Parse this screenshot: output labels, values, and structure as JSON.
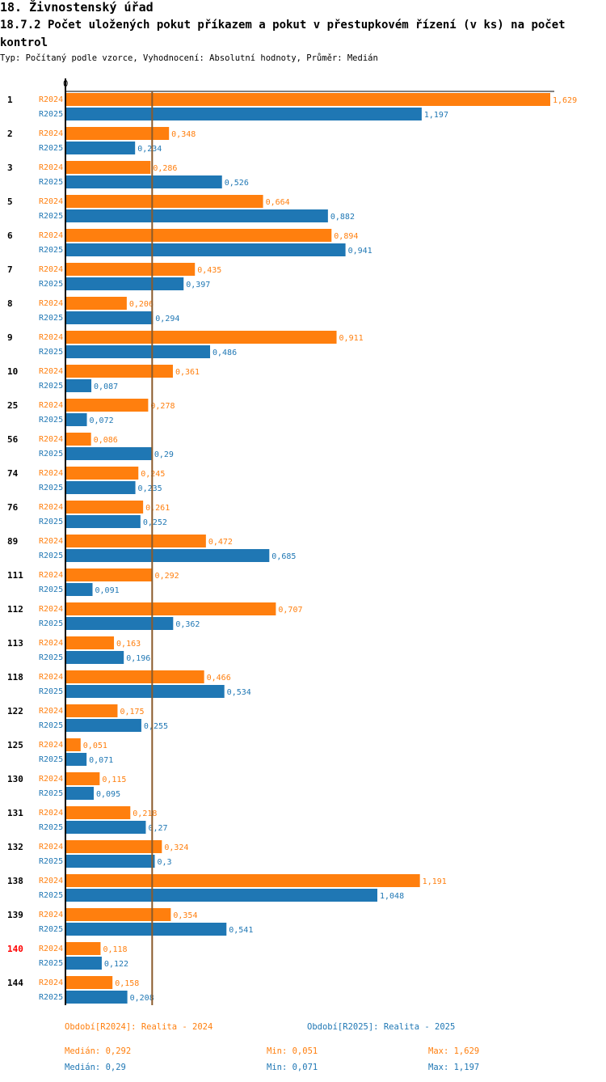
{
  "header": {
    "title": "18. Živnostenský úřad",
    "subtitle": "18.7.2 Počet uložených pokut příkazem a pokut v přestupkovém řízení (v ks) na počet kontrol",
    "type_line": "Typ: Počítaný podle vzorce, Vyhodnocení: Absolutní hodnoty, Průměr: Medián"
  },
  "colors": {
    "r2024": "#ff7f0e",
    "r2025": "#1f77b4",
    "highlight": "#ff0000",
    "median_line": "#8b5a2b"
  },
  "chart_data": {
    "type": "bar",
    "orientation": "horizontal",
    "axis_zero_label": "0",
    "xlim": [
      0,
      1.629
    ],
    "categories": [
      "1",
      "2",
      "3",
      "5",
      "6",
      "7",
      "8",
      "9",
      "10",
      "25",
      "56",
      "74",
      "76",
      "89",
      "111",
      "112",
      "113",
      "118",
      "122",
      "125",
      "130",
      "131",
      "132",
      "138",
      "139",
      "140",
      "144"
    ],
    "highlight_category": "140",
    "series": [
      {
        "name": "R2024",
        "values": [
          1.629,
          0.348,
          0.286,
          0.664,
          0.894,
          0.435,
          0.206,
          0.911,
          0.361,
          0.278,
          0.086,
          0.245,
          0.261,
          0.472,
          0.292,
          0.707,
          0.163,
          0.466,
          0.175,
          0.051,
          0.115,
          0.218,
          0.324,
          1.191,
          0.354,
          0.118,
          0.158
        ],
        "labels": [
          "1,629",
          "0,348",
          "0,286",
          "0,664",
          "0,894",
          "0,435",
          "0,206",
          "0,911",
          "0,361",
          "0,278",
          "0,086",
          "0,245",
          "0,261",
          "0,472",
          "0,292",
          "0,707",
          "0,163",
          "0,466",
          "0,175",
          "0,051",
          "0,115",
          "0,218",
          "0,324",
          "1,191",
          "0,354",
          "0,118",
          "0,158"
        ]
      },
      {
        "name": "R2025",
        "values": [
          1.197,
          0.234,
          0.526,
          0.882,
          0.941,
          0.397,
          0.294,
          0.486,
          0.087,
          0.072,
          0.29,
          0.235,
          0.252,
          0.685,
          0.091,
          0.362,
          0.196,
          0.534,
          0.255,
          0.071,
          0.095,
          0.27,
          0.3,
          1.048,
          0.541,
          0.122,
          0.208
        ],
        "labels": [
          "1,197",
          "0,234",
          "0,526",
          "0,882",
          "0,941",
          "0,397",
          "0,294",
          "0,486",
          "0,087",
          "0,072",
          "0,29",
          "0,235",
          "0,252",
          "0,685",
          "0,091",
          "0,362",
          "0,196",
          "0,534",
          "0,255",
          "0,071",
          "0,095",
          "0,27",
          "0,3",
          "1,048",
          "0,541",
          "0,122",
          "0,208"
        ]
      }
    ],
    "median_line_value": 0.29
  },
  "legend": {
    "r2024": "Období[R2024]: Realita - 2024",
    "r2025": "Období[R2025]: Realita - 2025"
  },
  "stats": {
    "r2024": {
      "median": "Medián: 0,292",
      "min": "Min: 0,051",
      "max": "Max: 1,629"
    },
    "r2025": {
      "median": "Medián: 0,29",
      "min": "Min: 0,071",
      "max": "Max: 1,197"
    }
  }
}
